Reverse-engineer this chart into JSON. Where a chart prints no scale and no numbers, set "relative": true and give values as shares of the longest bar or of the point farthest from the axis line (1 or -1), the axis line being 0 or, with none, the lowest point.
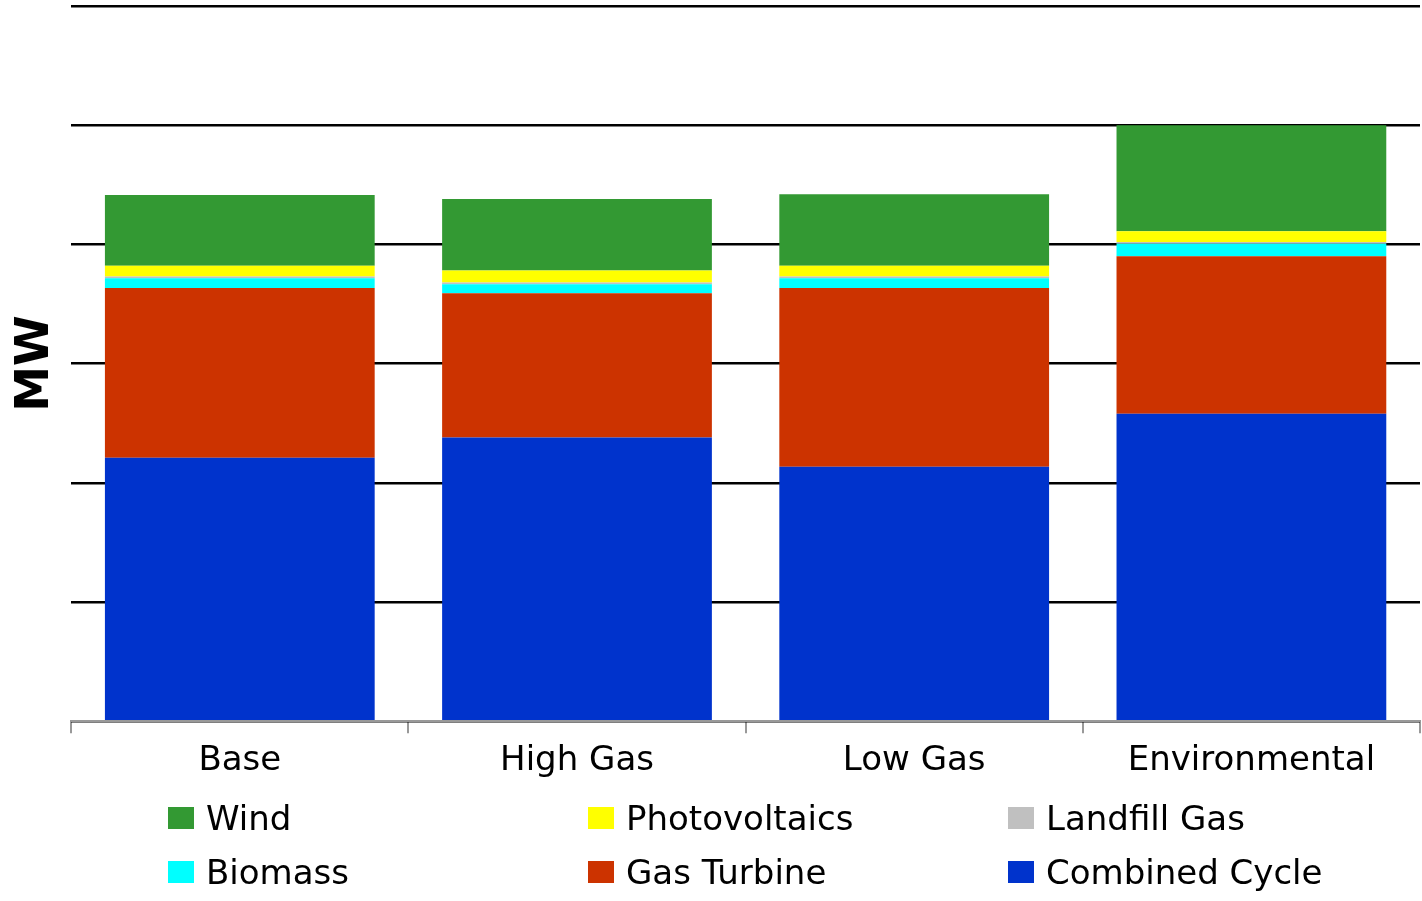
{
  "chart_data": {
    "type": "bar",
    "stacked": true,
    "relative": true,
    "ylabel": "MW",
    "grid": "y",
    "legend": "bottom",
    "categories": [
      "Base",
      "High Gas",
      "Low Gas",
      "Environmental"
    ],
    "series": [
      {
        "name": "Combined Cycle",
        "color": "#0033cc",
        "values": [
          0.442,
          0.476,
          0.427,
          0.516
        ]
      },
      {
        "name": "Gas Turbine",
        "color": "#cc3300",
        "values": [
          0.285,
          0.242,
          0.3,
          0.264
        ]
      },
      {
        "name": "Biomass",
        "color": "#00ffff",
        "values": [
          0.016,
          0.015,
          0.016,
          0.021
        ]
      },
      {
        "name": "Landfill Gas",
        "color": "#c0c0c0",
        "values": [
          0.003,
          0.003,
          0.003,
          0.003
        ]
      },
      {
        "name": "Photovoltaics",
        "color": "#ffff00",
        "values": [
          0.018,
          0.02,
          0.018,
          0.018
        ]
      },
      {
        "name": "Wind",
        "color": "#339933",
        "values": [
          0.119,
          0.12,
          0.12,
          0.178
        ]
      }
    ]
  }
}
